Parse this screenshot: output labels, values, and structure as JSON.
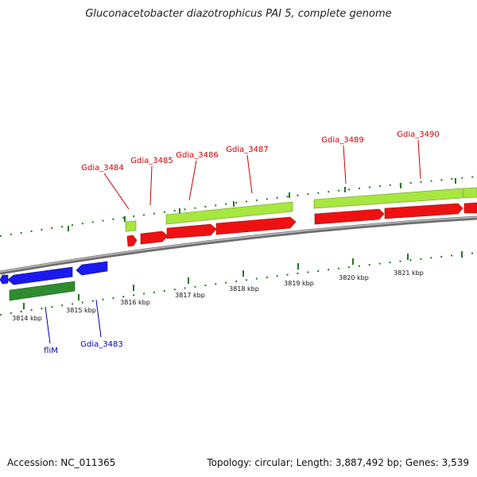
{
  "title": "Gluconacetobacter diazotrophicus PAI 5, complete genome",
  "footer": {
    "accession": "Accession: NC_011365",
    "summary": "Topology: circular; Length: 3,887,492 bp; Genes: 3,539"
  },
  "colors": {
    "axis": "#8a8a8a",
    "forward_gene": "#a8e640",
    "forward_cds": "#ee1111",
    "reverse_gene": "#2e8b2e",
    "reverse_cds": "#1a1aee",
    "forward_label": "#cc0000",
    "reverse_label": "#0000aa",
    "tick": "#1e7a1e"
  },
  "scale": {
    "ticks": [
      {
        "label": "3814 kbp"
      },
      {
        "label": "3815 kbp"
      },
      {
        "label": "3816 kbp"
      },
      {
        "label": "3817 kbp"
      },
      {
        "label": "3818 kbp"
      },
      {
        "label": "3819 kbp"
      },
      {
        "label": "3820 kbp"
      },
      {
        "label": "3821 kbp"
      }
    ]
  },
  "forward_labels": [
    {
      "name": "Gdia_3484"
    },
    {
      "name": "Gdia_3485"
    },
    {
      "name": "Gdia_3486"
    },
    {
      "name": "Gdia_3487"
    },
    {
      "name": "Gdia_3489"
    },
    {
      "name": "Gdia_3490"
    }
  ],
  "reverse_labels": [
    {
      "name": "fliM"
    },
    {
      "name": "Gdia_3483"
    }
  ]
}
